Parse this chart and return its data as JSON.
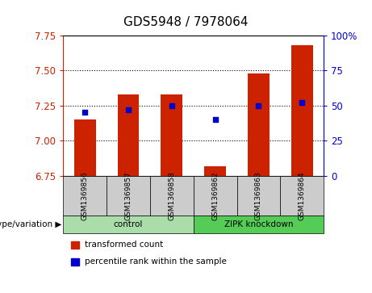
{
  "title": "GDS5948 / 7978064",
  "samples": [
    "GSM1369856",
    "GSM1369857",
    "GSM1369858",
    "GSM1369862",
    "GSM1369863",
    "GSM1369864"
  ],
  "red_values": [
    7.15,
    7.33,
    7.33,
    6.82,
    7.48,
    7.68
  ],
  "blue_values": [
    45,
    47,
    50,
    40,
    50,
    52
  ],
  "ylim_left": [
    6.75,
    7.75
  ],
  "ylim_right": [
    0,
    100
  ],
  "yticks_left": [
    6.75,
    7.0,
    7.25,
    7.5,
    7.75
  ],
  "yticks_right": [
    0,
    25,
    50,
    75,
    100
  ],
  "ytick_labels_right": [
    "0",
    "25",
    "50",
    "75",
    "100%"
  ],
  "bar_bottom": 6.75,
  "bar_color": "#cc2200",
  "dot_color": "#0000cc",
  "groups": [
    {
      "label": "control",
      "indices": [
        0,
        1,
        2
      ],
      "color": "#aaddaa"
    },
    {
      "label": "ZIPK knockdown",
      "indices": [
        3,
        4,
        5
      ],
      "color": "#55cc55"
    }
  ],
  "group_label_prefix": "genotype/variation ▶",
  "legend_items": [
    {
      "label": "transformed count",
      "color": "#cc2200"
    },
    {
      "label": "percentile rank within the sample",
      "color": "#0000cc"
    }
  ],
  "grid_color": "black",
  "bg_plot": "white",
  "bg_xtick": "#cccccc",
  "left_color": "#cc2200",
  "right_color": "#0000cc",
  "title_fontsize": 11,
  "tick_fontsize": 8.5,
  "bar_width": 0.5
}
